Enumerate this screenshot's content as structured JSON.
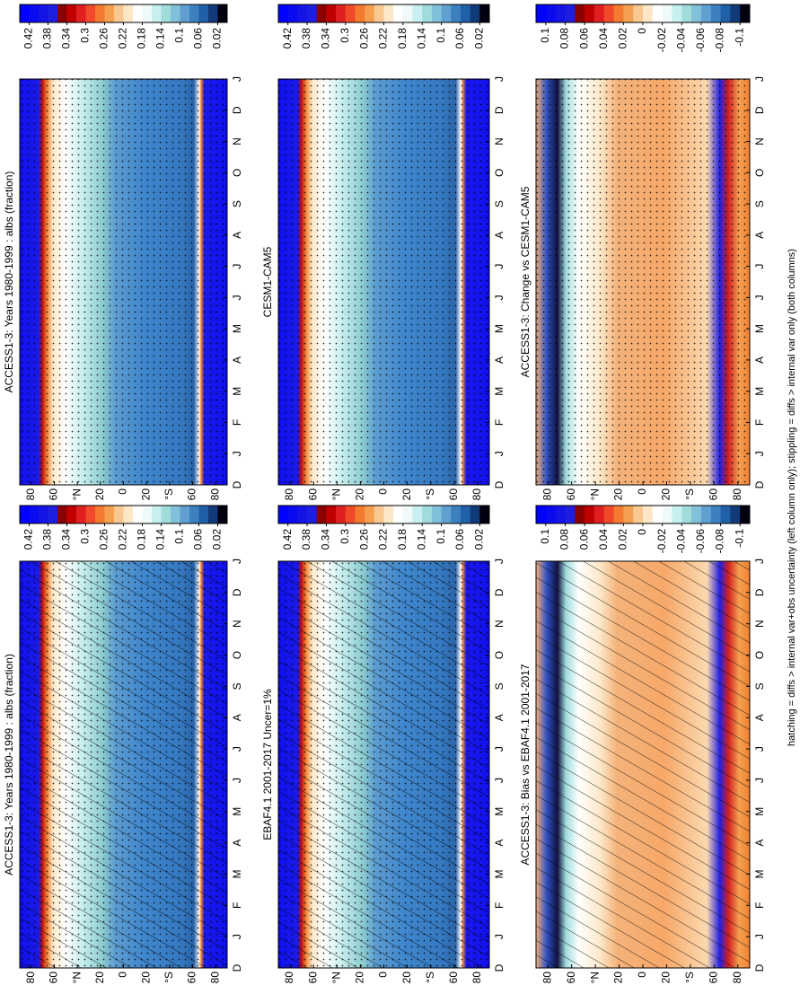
{
  "chart_data": [
    {
      "type": "contour",
      "title": "ACCESS1-3: Years 1980-1999 : albs (fraction)",
      "pattern": "hatch-dots",
      "categories": [
        "D",
        "J",
        "F",
        "M",
        "A",
        "M",
        "J",
        "J",
        "A",
        "S",
        "O",
        "N",
        "D",
        "J"
      ],
      "ylim": [
        -90,
        90
      ],
      "yticks": [
        80,
        60,
        {
          "value": 40,
          "label": "°N"
        },
        20,
        0,
        {
          "value": -20,
          "label": "20"
        },
        {
          "value": -40,
          "label": "°S"
        },
        {
          "value": -60,
          "label": "60"
        },
        {
          "value": -80,
          "label": "80"
        }
      ],
      "colorbar_lim": [
        0,
        0.44
      ],
      "colorbar_ticks": [
        0.42,
        0.38,
        0.34,
        0.3,
        0.26,
        0.22,
        0.18,
        0.14,
        0.1,
        0.06,
        0.02
      ],
      "colorbar_colors": [
        "#0000ff",
        "#0a0af0",
        "#1414e6",
        "#1e1ee0",
        "#8b0000",
        "#c00000",
        "#e02020",
        "#f04a2a",
        "#f47a30",
        "#f4a050",
        "#f8c890",
        "#fce8c8",
        "#ffffff",
        "#f0fafa",
        "#c8f0f0",
        "#a0dcdc",
        "#80c0d8",
        "#60a0d0",
        "#3c80c0",
        "#2060a8",
        "#103a78",
        "#000010"
      ]
    },
    {
      "type": "contour",
      "title": "EBAF4.1 2001-2017 Uncer=1%",
      "pattern": "hatch-dots",
      "categories": [
        "D",
        "J",
        "F",
        "M",
        "A",
        "M",
        "J",
        "J",
        "A",
        "S",
        "O",
        "N",
        "D",
        "J"
      ],
      "ylim": [
        -90,
        90
      ],
      "yticks": [
        80,
        60,
        {
          "value": 40,
          "label": "°N"
        },
        20,
        0,
        {
          "value": -20,
          "label": "20"
        },
        {
          "value": -40,
          "label": "°S"
        },
        {
          "value": -60,
          "label": "60"
        },
        {
          "value": -80,
          "label": "80"
        }
      ],
      "colorbar_lim": [
        0,
        0.44
      ],
      "colorbar_ticks": [
        0.42,
        0.38,
        0.34,
        0.3,
        0.26,
        0.22,
        0.18,
        0.14,
        0.1,
        0.06,
        0.02
      ],
      "colorbar_colors": [
        "#0000ff",
        "#0a0af0",
        "#1414e6",
        "#1e1ee0",
        "#8b0000",
        "#c00000",
        "#e02020",
        "#f04a2a",
        "#f47a30",
        "#f4a050",
        "#f8c890",
        "#fce8c8",
        "#ffffff",
        "#f0fafa",
        "#c8f0f0",
        "#a0dcdc",
        "#80c0d8",
        "#60a0d0",
        "#3c80c0",
        "#2060a8",
        "#103a78",
        "#000010"
      ]
    },
    {
      "type": "contour-diff",
      "title": "ACCESS1-3: Bias vs EBAF4.1 2001-2017",
      "pattern": "hatch",
      "categories": [
        "D",
        "J",
        "F",
        "M",
        "A",
        "M",
        "J",
        "J",
        "A",
        "S",
        "O",
        "N",
        "D",
        "J"
      ],
      "ylim": [
        -90,
        90
      ],
      "yticks": [
        80,
        60,
        {
          "value": 40,
          "label": "°N"
        },
        20,
        0,
        {
          "value": -20,
          "label": "20"
        },
        {
          "value": -40,
          "label": "°S"
        },
        {
          "value": -60,
          "label": "60"
        },
        {
          "value": -80,
          "label": "80"
        }
      ],
      "colorbar_lim": [
        -0.11,
        0.11
      ],
      "colorbar_ticks": [
        0.1,
        0.08,
        0.06,
        0.04,
        0.02,
        0,
        -0.02,
        -0.04,
        -0.06,
        -0.08,
        -0.1
      ],
      "colorbar_colors": [
        "#0000ff",
        "#0a0af0",
        "#1414e6",
        "#1e1ee0",
        "#8b0000",
        "#c00000",
        "#e02020",
        "#f04a2a",
        "#f47a30",
        "#f4a050",
        "#f8c890",
        "#fce8c8",
        "#ffffff",
        "#f0fafa",
        "#c8f0f0",
        "#a0dcdc",
        "#80c0d8",
        "#60a0d0",
        "#3c80c0",
        "#2060a8",
        "#103a78",
        "#000010"
      ]
    },
    {
      "type": "contour",
      "title": "ACCESS1-3: Years 1980-1999 : albs (fraction)",
      "pattern": "dots",
      "categories": [
        "D",
        "J",
        "F",
        "M",
        "A",
        "M",
        "J",
        "J",
        "A",
        "S",
        "O",
        "N",
        "D",
        "J"
      ],
      "ylim": [
        -90,
        90
      ],
      "yticks": [
        80,
        60,
        {
          "value": 40,
          "label": "°N"
        },
        20,
        0,
        {
          "value": -20,
          "label": "20"
        },
        {
          "value": -40,
          "label": "°S"
        },
        {
          "value": -60,
          "label": "60"
        },
        {
          "value": -80,
          "label": "80"
        }
      ],
      "colorbar_lim": [
        0,
        0.44
      ],
      "colorbar_ticks": [
        0.42,
        0.38,
        0.34,
        0.3,
        0.26,
        0.22,
        0.18,
        0.14,
        0.1,
        0.06,
        0.02
      ],
      "colorbar_colors": [
        "#0000ff",
        "#0a0af0",
        "#1414e6",
        "#1e1ee0",
        "#8b0000",
        "#c00000",
        "#e02020",
        "#f04a2a",
        "#f47a30",
        "#f4a050",
        "#f8c890",
        "#fce8c8",
        "#ffffff",
        "#f0fafa",
        "#c8f0f0",
        "#a0dcdc",
        "#80c0d8",
        "#60a0d0",
        "#3c80c0",
        "#2060a8",
        "#103a78",
        "#000010"
      ]
    },
    {
      "type": "contour",
      "title": "CESM1-CAM5",
      "pattern": "dots",
      "categories": [
        "D",
        "J",
        "F",
        "M",
        "A",
        "M",
        "J",
        "J",
        "A",
        "S",
        "O",
        "N",
        "D",
        "J"
      ],
      "ylim": [
        -90,
        90
      ],
      "yticks": [
        80,
        60,
        {
          "value": 40,
          "label": "°N"
        },
        20,
        0,
        {
          "value": -20,
          "label": "20"
        },
        {
          "value": -40,
          "label": "°S"
        },
        {
          "value": -60,
          "label": "60"
        },
        {
          "value": -80,
          "label": "80"
        }
      ],
      "colorbar_lim": [
        0,
        0.44
      ],
      "colorbar_ticks": [
        0.42,
        0.38,
        0.34,
        0.3,
        0.26,
        0.22,
        0.18,
        0.14,
        0.1,
        0.06,
        0.02
      ],
      "colorbar_colors": [
        "#0000ff",
        "#0a0af0",
        "#1414e6",
        "#1e1ee0",
        "#8b0000",
        "#c00000",
        "#e02020",
        "#f04a2a",
        "#f47a30",
        "#f4a050",
        "#f8c890",
        "#fce8c8",
        "#ffffff",
        "#f0fafa",
        "#c8f0f0",
        "#a0dcdc",
        "#80c0d8",
        "#60a0d0",
        "#3c80c0",
        "#2060a8",
        "#103a78",
        "#000010"
      ]
    },
    {
      "type": "contour-diff",
      "title": "ACCESS1-3: Change vs CESM1-CAM5",
      "pattern": "dots",
      "categories": [
        "D",
        "J",
        "F",
        "M",
        "A",
        "M",
        "J",
        "J",
        "A",
        "S",
        "O",
        "N",
        "D",
        "J"
      ],
      "ylim": [
        -90,
        90
      ],
      "yticks": [
        80,
        60,
        {
          "value": 40,
          "label": "°N"
        },
        20,
        0,
        {
          "value": -20,
          "label": "20"
        },
        {
          "value": -40,
          "label": "°S"
        },
        {
          "value": -60,
          "label": "60"
        },
        {
          "value": -80,
          "label": "80"
        }
      ],
      "colorbar_lim": [
        -0.11,
        0.11
      ],
      "colorbar_ticks": [
        0.1,
        0.08,
        0.06,
        0.04,
        0.02,
        0,
        -0.02,
        -0.04,
        -0.06,
        -0.08,
        -0.1
      ],
      "colorbar_colors": [
        "#0000ff",
        "#0a0af0",
        "#1414e6",
        "#1e1ee0",
        "#8b0000",
        "#c00000",
        "#e02020",
        "#f04a2a",
        "#f47a30",
        "#f4a050",
        "#f8c890",
        "#fce8c8",
        "#ffffff",
        "#f0fafa",
        "#c8f0f0",
        "#a0dcdc",
        "#80c0d8",
        "#60a0d0",
        "#3c80c0",
        "#2060a8",
        "#103a78",
        "#000010"
      ]
    }
  ],
  "footnote": "hatching = diffs > internal var+obs uncertainty (left column only); stippling = diffs > internal var only (both columns)"
}
